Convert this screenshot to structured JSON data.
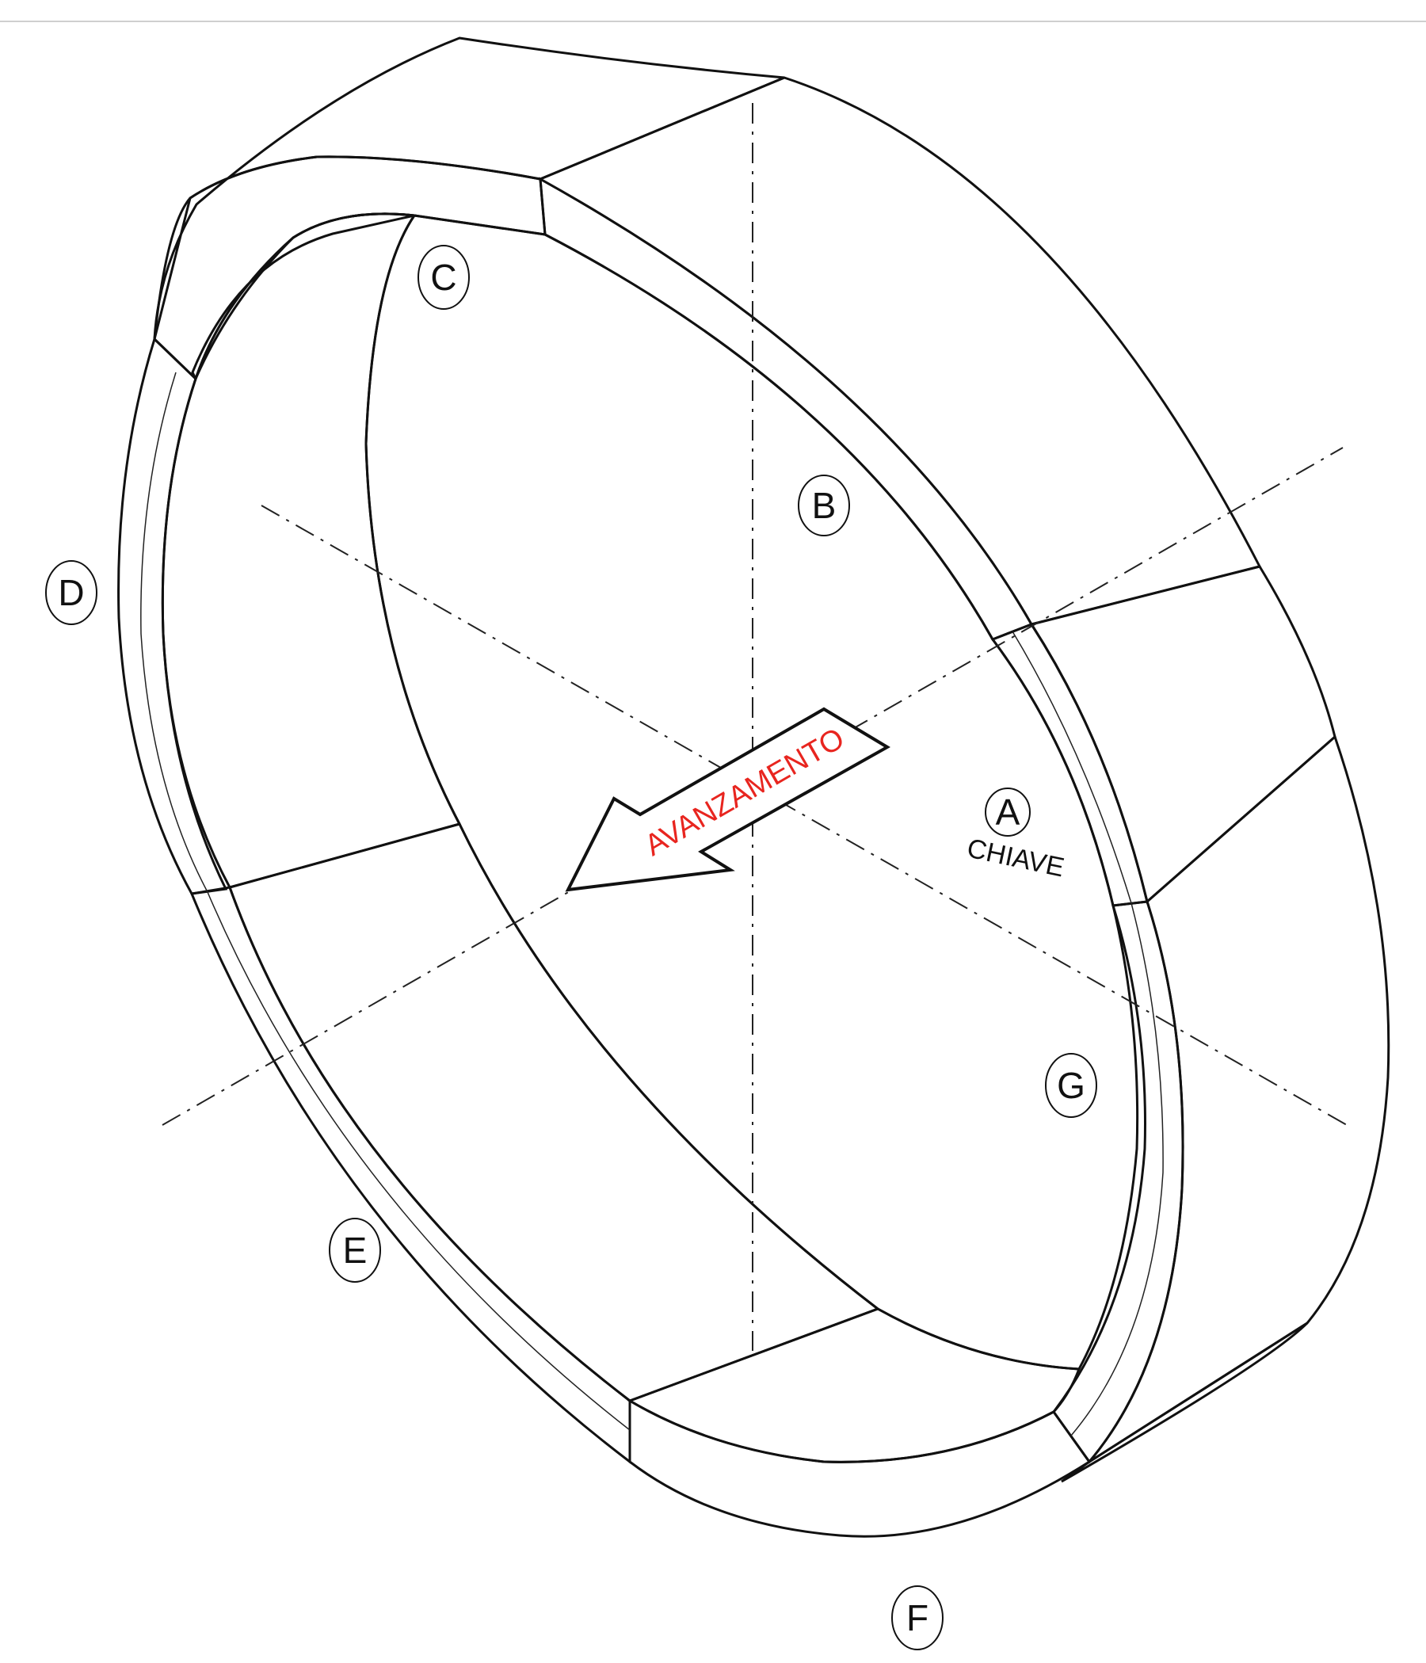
{
  "drawing": {
    "arrow_label": "AVANZAMENTO",
    "key_label": "CHIAVE",
    "colors": {
      "accent_text": "#e8251f",
      "outline": "#111111",
      "background": "#ffffff"
    }
  },
  "segments": [
    {
      "id": "A",
      "label": "A",
      "note": "CHIAVE",
      "color": "#c9c48a"
    },
    {
      "id": "B",
      "label": "B",
      "color": "#79c191"
    },
    {
      "id": "C",
      "label": "C",
      "color": "#c48395"
    },
    {
      "id": "D",
      "label": "D",
      "color": "#4d8591"
    },
    {
      "id": "E",
      "label": "E",
      "color": "#e39a55"
    },
    {
      "id": "F",
      "label": "F",
      "color": "#a0dc6e"
    },
    {
      "id": "G",
      "label": "G",
      "color": "#7e2f87"
    }
  ]
}
